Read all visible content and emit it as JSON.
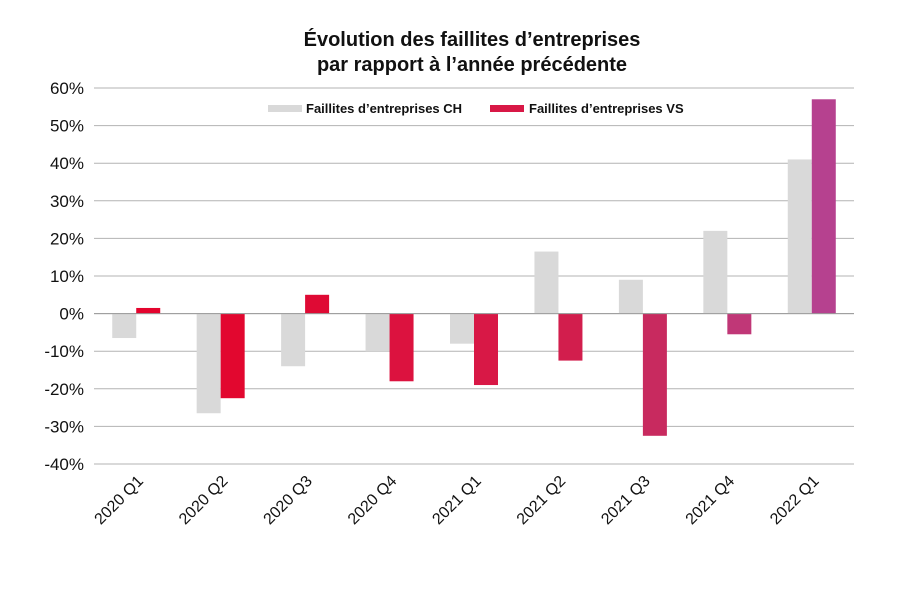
{
  "chart_data": {
    "type": "bar",
    "title": "Évolution des faillites d’entreprises",
    "subtitle": "par rapport à l’année précédente",
    "categories": [
      "2020 Q1",
      "2020 Q2",
      "2020 Q3",
      "2020 Q4",
      "2021 Q1",
      "2021 Q2",
      "2021 Q3",
      "2021 Q4",
      "2022 Q1"
    ],
    "series": [
      {
        "name": "Faillites d’entreprises CH",
        "values": [
          -6.5,
          -26.5,
          -14,
          -10,
          -8,
          16.5,
          9,
          22,
          41
        ],
        "colors": [
          "#d9d9d9",
          "#d9d9d9",
          "#d9d9d9",
          "#d9d9d9",
          "#d9d9d9",
          "#d9d9d9",
          "#d9d9d9",
          "#d9d9d9",
          "#d9d9d9"
        ]
      },
      {
        "name": "Faillites d’entreprises VS",
        "values": [
          1.5,
          -22.5,
          5,
          -18,
          -19,
          -12.5,
          -32.5,
          -5.5,
          57
        ],
        "colors": [
          "#e4042e",
          "#e2072f",
          "#df0a34",
          "#dc123f",
          "#d81846",
          "#d21e4d",
          "#c82a5f",
          "#c03777",
          "#b6418f"
        ]
      }
    ],
    "yticks": [
      "-40%",
      "-30%",
      "-20%",
      "-10%",
      "0%",
      "10%",
      "20%",
      "30%",
      "40%",
      "50%",
      "60%"
    ],
    "ylim": [
      -40,
      60
    ],
    "grid": true,
    "legend_position": "top-center",
    "legend_colors": [
      "#d9d9d9",
      "#d81846"
    ],
    "xlabel": "",
    "ylabel": ""
  }
}
